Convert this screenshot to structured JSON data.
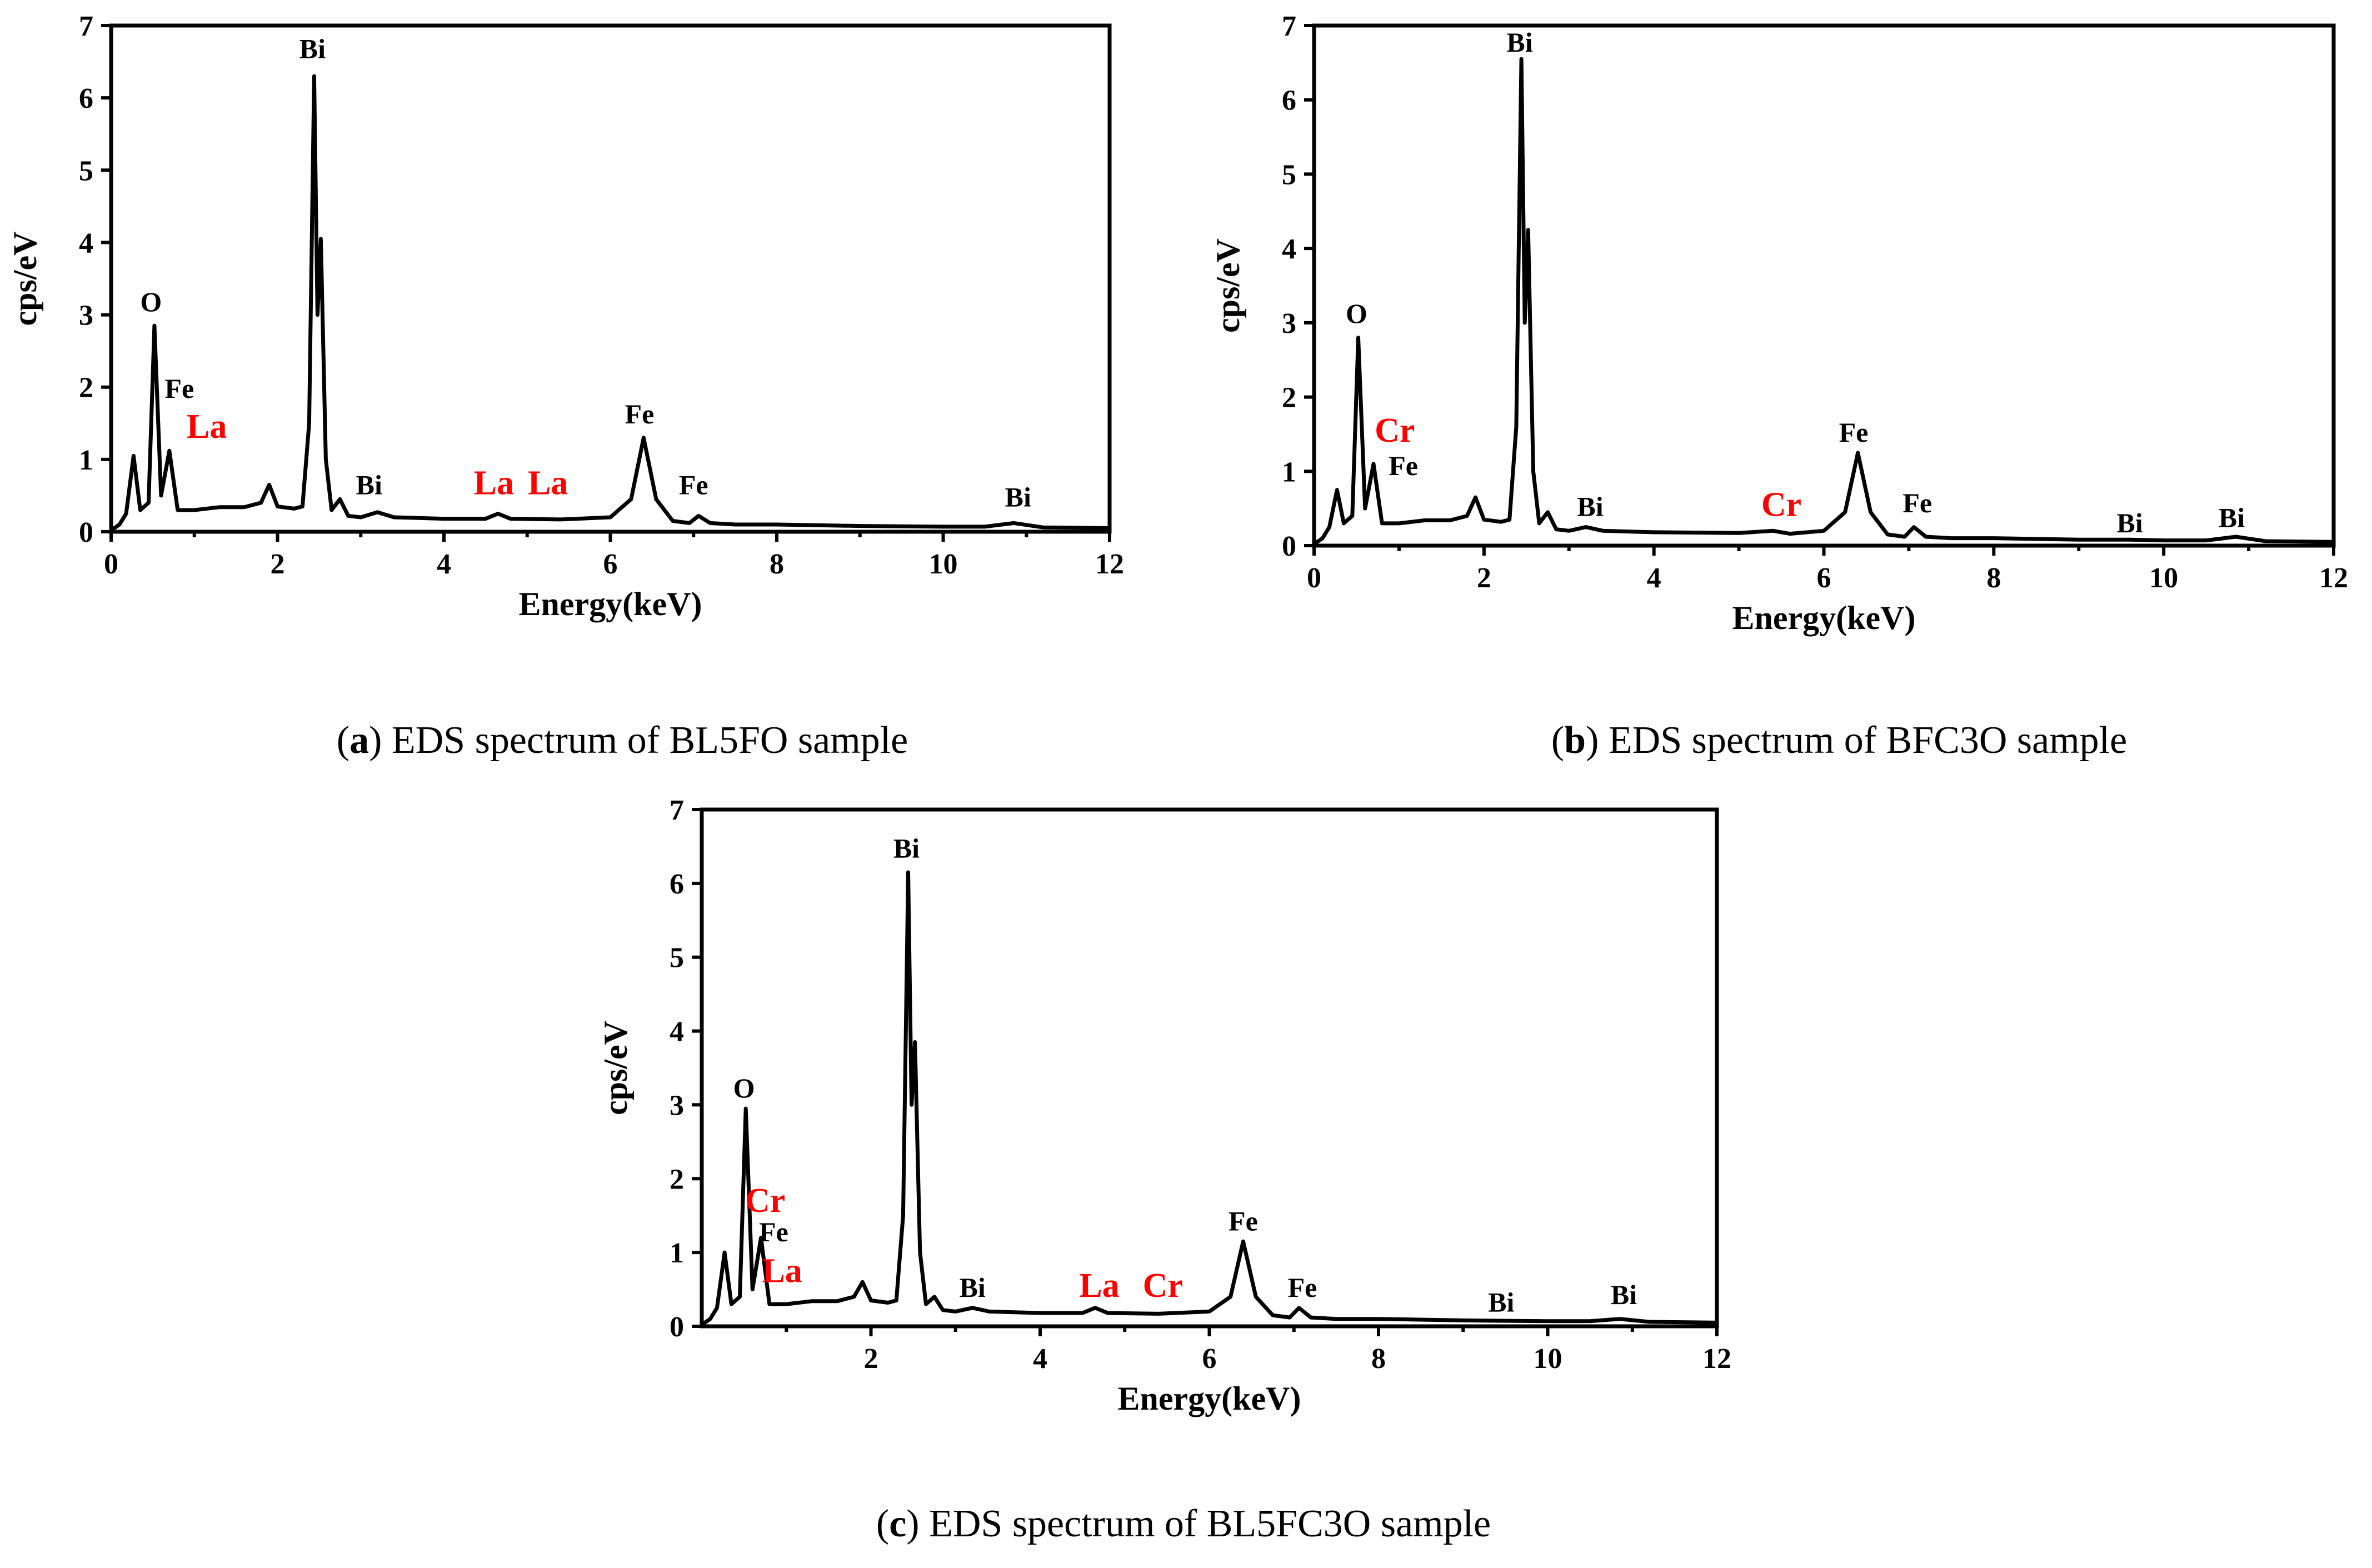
{
  "chart_data": [
    {
      "type": "line",
      "xlabel": "Energy(keV)",
      "ylabel": "cps/eV",
      "xlim": [
        0,
        12
      ],
      "ylim": [
        0,
        7
      ],
      "xticks": [
        "0",
        "2",
        "4",
        "6",
        "8",
        "10",
        "12"
      ],
      "yticks": [
        "0",
        "1",
        "2",
        "3",
        "4",
        "5",
        "6",
        "7"
      ],
      "caption": {
        "letter": "a",
        "text": " EDS spectrum of BL5FO sample"
      },
      "series": [
        {
          "name": "BL5FO",
          "x": [
            0,
            0.1,
            0.18,
            0.27,
            0.35,
            0.45,
            0.52,
            0.6,
            0.7,
            0.8,
            1.0,
            1.3,
            1.6,
            1.8,
            1.9,
            2.0,
            2.2,
            2.3,
            2.38,
            2.44,
            2.48,
            2.52,
            2.58,
            2.65,
            2.75,
            2.85,
            3.0,
            3.2,
            3.4,
            4.0,
            4.5,
            4.65,
            4.8,
            5.4,
            6.0,
            6.25,
            6.4,
            6.55,
            6.75,
            6.95,
            7.06,
            7.2,
            7.5,
            8.0,
            9.0,
            10.0,
            10.5,
            10.85,
            11.2,
            12.0
          ],
          "y": [
            0.02,
            0.1,
            0.25,
            1.05,
            0.3,
            0.4,
            2.85,
            0.5,
            1.12,
            0.3,
            0.3,
            0.34,
            0.34,
            0.4,
            0.65,
            0.35,
            0.32,
            0.35,
            1.5,
            6.3,
            3.0,
            4.05,
            1.0,
            0.3,
            0.45,
            0.22,
            0.2,
            0.27,
            0.2,
            0.18,
            0.18,
            0.25,
            0.18,
            0.17,
            0.2,
            0.45,
            1.3,
            0.45,
            0.15,
            0.12,
            0.22,
            0.12,
            0.1,
            0.1,
            0.08,
            0.07,
            0.07,
            0.12,
            0.06,
            0.05
          ]
        }
      ],
      "annotations": [
        {
          "text": "Bi",
          "x": 2.42,
          "y": 6.55,
          "color": "#000000"
        },
        {
          "text": "O",
          "x": 0.48,
          "y": 3.05,
          "color": "#000000"
        },
        {
          "text": "Fe",
          "x": 0.82,
          "y": 1.85,
          "color": "#000000"
        },
        {
          "text": "La",
          "x": 1.15,
          "y": 1.3,
          "color": "#ff0000"
        },
        {
          "text": "Bi",
          "x": 3.1,
          "y": 0.52,
          "color": "#000000"
        },
        {
          "text": "La",
          "x": 4.6,
          "y": 0.52,
          "color": "#ff0000"
        },
        {
          "text": "La",
          "x": 5.25,
          "y": 0.52,
          "color": "#ff0000"
        },
        {
          "text": "Fe",
          "x": 6.35,
          "y": 1.5,
          "color": "#000000"
        },
        {
          "text": "Fe",
          "x": 7.0,
          "y": 0.52,
          "color": "#000000"
        },
        {
          "text": "Bi",
          "x": 10.9,
          "y": 0.35,
          "color": "#000000"
        }
      ]
    },
    {
      "type": "line",
      "xlabel": "Energy(keV)",
      "ylabel": "cps/eV",
      "xlim": [
        0,
        12
      ],
      "ylim": [
        0,
        7
      ],
      "xticks": [
        "0",
        "2",
        "4",
        "6",
        "8",
        "10",
        "12"
      ],
      "yticks": [
        "0",
        "1",
        "2",
        "3",
        "4",
        "5",
        "6",
        "7"
      ],
      "caption": {
        "letter": "b",
        "text": " EDS spectrum of BFC3O sample"
      },
      "series": [
        {
          "name": "BFC3O",
          "x": [
            0,
            0.1,
            0.18,
            0.27,
            0.35,
            0.45,
            0.52,
            0.6,
            0.7,
            0.8,
            1.0,
            1.3,
            1.6,
            1.8,
            1.9,
            2.0,
            2.2,
            2.3,
            2.38,
            2.44,
            2.48,
            2.52,
            2.58,
            2.65,
            2.75,
            2.85,
            3.0,
            3.2,
            3.4,
            4.0,
            5.0,
            5.4,
            5.6,
            6.0,
            6.25,
            6.4,
            6.55,
            6.75,
            6.95,
            7.06,
            7.2,
            7.5,
            8.0,
            9.0,
            9.6,
            10.0,
            10.5,
            10.85,
            11.2,
            12.0
          ],
          "y": [
            0.02,
            0.1,
            0.25,
            0.75,
            0.3,
            0.4,
            2.8,
            0.5,
            1.1,
            0.3,
            0.3,
            0.34,
            0.34,
            0.4,
            0.65,
            0.35,
            0.32,
            0.35,
            1.6,
            6.55,
            3.0,
            4.25,
            1.0,
            0.3,
            0.45,
            0.22,
            0.2,
            0.25,
            0.2,
            0.18,
            0.17,
            0.2,
            0.16,
            0.2,
            0.45,
            1.25,
            0.45,
            0.15,
            0.12,
            0.25,
            0.12,
            0.1,
            0.1,
            0.08,
            0.08,
            0.07,
            0.07,
            0.12,
            0.06,
            0.05
          ]
        }
      ],
      "annotations": [
        {
          "text": "Bi",
          "x": 2.42,
          "y": 6.65,
          "color": "#000000"
        },
        {
          "text": "O",
          "x": 0.5,
          "y": 3.0,
          "color": "#000000"
        },
        {
          "text": "Cr",
          "x": 0.95,
          "y": 1.4,
          "color": "#ff0000"
        },
        {
          "text": "Fe",
          "x": 1.05,
          "y": 0.95,
          "color": "#000000"
        },
        {
          "text": "Bi",
          "x": 3.25,
          "y": 0.4,
          "color": "#000000"
        },
        {
          "text": "Cr",
          "x": 5.5,
          "y": 0.4,
          "color": "#ff0000"
        },
        {
          "text": "Fe",
          "x": 6.35,
          "y": 1.4,
          "color": "#000000"
        },
        {
          "text": "Fe",
          "x": 7.1,
          "y": 0.45,
          "color": "#000000"
        },
        {
          "text": "Bi",
          "x": 9.6,
          "y": 0.18,
          "color": "#000000"
        },
        {
          "text": "Bi",
          "x": 10.8,
          "y": 0.25,
          "color": "#000000"
        }
      ]
    },
    {
      "type": "line",
      "xlabel": "Energy(keV)",
      "ylabel": "cps/eV",
      "xlim": [
        0,
        12
      ],
      "ylim": [
        0,
        7
      ],
      "xticks": [
        "2",
        "4",
        "6",
        "8",
        "10",
        "12"
      ],
      "yticks": [
        "0",
        "1",
        "2",
        "3",
        "4",
        "5",
        "6",
        "7"
      ],
      "caption": {
        "letter": "c",
        "text": " EDS spectrum of BL5FC3O sample"
      },
      "series": [
        {
          "name": "BL5FC3O",
          "x": [
            0,
            0.1,
            0.18,
            0.27,
            0.35,
            0.45,
            0.52,
            0.6,
            0.7,
            0.8,
            1.0,
            1.3,
            1.6,
            1.8,
            1.9,
            2.0,
            2.2,
            2.3,
            2.38,
            2.44,
            2.48,
            2.52,
            2.58,
            2.65,
            2.75,
            2.85,
            3.0,
            3.2,
            3.4,
            4.0,
            4.5,
            4.65,
            4.8,
            5.4,
            6.0,
            6.25,
            6.4,
            6.55,
            6.75,
            6.95,
            7.06,
            7.2,
            7.5,
            8.0,
            9.0,
            10.0,
            10.5,
            10.85,
            11.2,
            12.0
          ],
          "y": [
            0.02,
            0.1,
            0.25,
            1.0,
            0.3,
            0.4,
            2.95,
            0.5,
            1.2,
            0.3,
            0.3,
            0.34,
            0.34,
            0.4,
            0.6,
            0.35,
            0.32,
            0.35,
            1.5,
            6.15,
            3.0,
            3.85,
            1.0,
            0.3,
            0.4,
            0.22,
            0.2,
            0.25,
            0.2,
            0.18,
            0.18,
            0.25,
            0.18,
            0.17,
            0.2,
            0.4,
            1.15,
            0.4,
            0.15,
            0.12,
            0.25,
            0.12,
            0.1,
            0.1,
            0.08,
            0.07,
            0.07,
            0.1,
            0.06,
            0.05
          ]
        }
      ],
      "annotations": [
        {
          "text": "Bi",
          "x": 2.42,
          "y": 6.35,
          "color": "#000000"
        },
        {
          "text": "O",
          "x": 0.5,
          "y": 3.1,
          "color": "#000000"
        },
        {
          "text": "Cr",
          "x": 0.75,
          "y": 1.55,
          "color": "#ff0000"
        },
        {
          "text": "Fe",
          "x": 0.85,
          "y": 1.15,
          "color": "#000000"
        },
        {
          "text": "La",
          "x": 0.95,
          "y": 0.6,
          "color": "#ff0000"
        },
        {
          "text": "Bi",
          "x": 3.2,
          "y": 0.4,
          "color": "#000000"
        },
        {
          "text": "La",
          "x": 4.7,
          "y": 0.4,
          "color": "#ff0000"
        },
        {
          "text": "Cr",
          "x": 5.45,
          "y": 0.4,
          "color": "#ff0000"
        },
        {
          "text": "Fe",
          "x": 6.4,
          "y": 1.3,
          "color": "#000000"
        },
        {
          "text": "Fe",
          "x": 7.1,
          "y": 0.4,
          "color": "#000000"
        },
        {
          "text": "Bi",
          "x": 9.45,
          "y": 0.2,
          "color": "#000000"
        },
        {
          "text": "Bi",
          "x": 10.9,
          "y": 0.3,
          "color": "#000000"
        }
      ]
    }
  ]
}
